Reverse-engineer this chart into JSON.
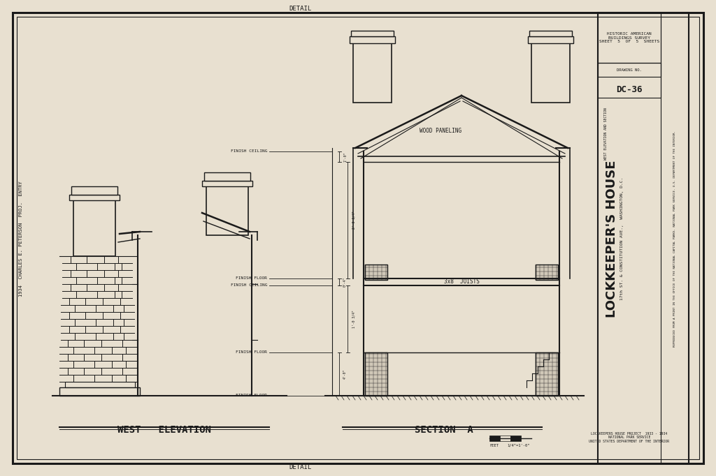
{
  "bg_color": "#ccc4b0",
  "paper_color": "#e8e0d0",
  "line_color": "#1a1a1a",
  "title_west": "WEST   ELEVATION",
  "title_section": "SECTION  A",
  "main_title": "LOCKKEEPER'S HOUSE",
  "subtitle": "17th ST. & CONSTITUTION AVE.,  WASHINGTON, D.C.",
  "top_label": "DETAIL",
  "bottom_label": "DETAIL",
  "sheet_info": "HISTORIC AMERICAN\nBUILDINGS SURVEY\nSHEET  5  OF  5  SHEETS",
  "drawing_no": "DC-36",
  "left_credit": "1934  CHARLES E. PETERSON  PROJ.  ENTRY",
  "project_label": "LOCKKEEPERS HOUSE PROJECT  1933 - 1934"
}
